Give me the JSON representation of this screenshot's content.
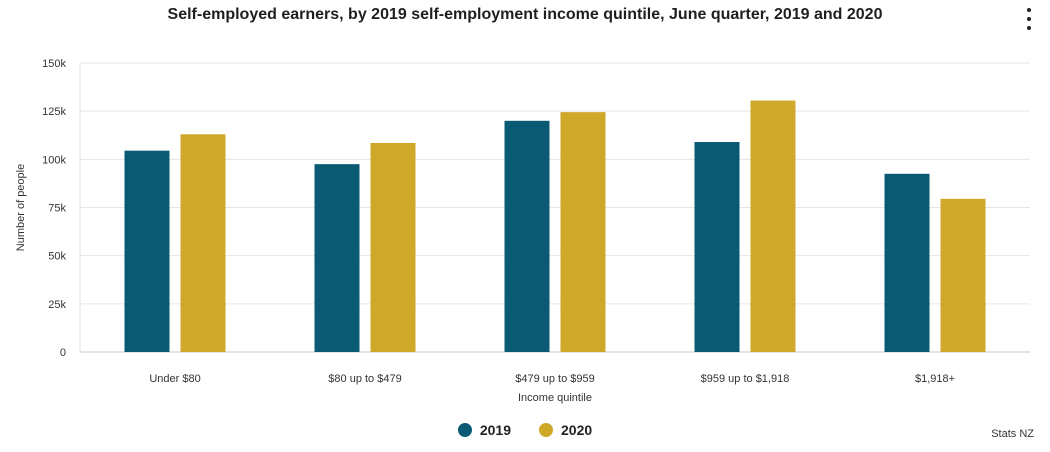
{
  "chart_data": {
    "type": "bar",
    "title": "Self-employed earners, by 2019 self-employment income quintile, June quarter, 2019 and 2020",
    "xlabel": "Income quintile",
    "ylabel": "Number of people",
    "categories": [
      "Under $80",
      "$80 up to $479",
      "$479 up to $959",
      "$959 up to $1,918",
      "$1,918+"
    ],
    "series": [
      {
        "name": "2019",
        "color": "#0b5a73",
        "values": [
          104500,
          97500,
          120000,
          109000,
          92500
        ]
      },
      {
        "name": "2020",
        "color": "#cfa82a",
        "values": [
          113000,
          108500,
          124500,
          130500,
          79500
        ]
      }
    ],
    "ylim": [
      0,
      150000
    ],
    "yticks": [
      0,
      25000,
      50000,
      75000,
      100000,
      125000,
      150000
    ],
    "ytick_labels": [
      "0",
      "25k",
      "50k",
      "75k",
      "100k",
      "125k",
      "150k"
    ],
    "grid": true,
    "legend_position": "bottom"
  },
  "credit": "Stats NZ"
}
